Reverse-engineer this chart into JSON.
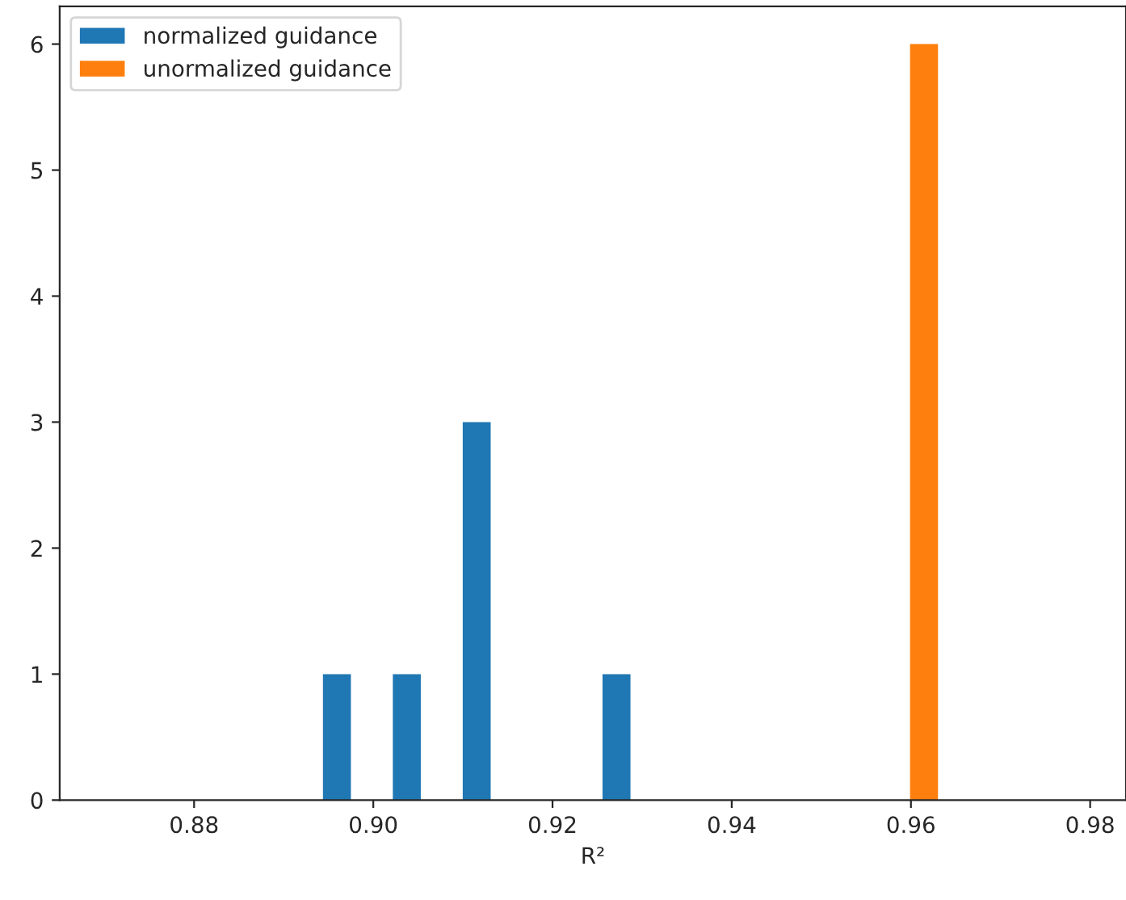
{
  "chart_data": {
    "type": "histogram",
    "xlabel": "R²",
    "bins": [
      0.8936,
      0.9014,
      0.9092,
      0.917,
      0.9248,
      0.9326,
      0.9404,
      0.9482,
      0.956,
      0.9638,
      0.9716
    ],
    "series": [
      {
        "name": "normalized guidance",
        "color": "#1f77b4",
        "values": [
          1,
          1,
          3,
          0,
          1,
          0,
          0,
          0,
          0,
          0
        ]
      },
      {
        "name": "unormalized guidance",
        "color": "#ff7f0e",
        "values": [
          0,
          0,
          0,
          0,
          0,
          0,
          0,
          0,
          6,
          0
        ]
      }
    ],
    "xlim": [
      0.865,
      0.984
    ],
    "xticks": [
      {
        "value": 0.88,
        "label": "0.88"
      },
      {
        "value": 0.9,
        "label": "0.90"
      },
      {
        "value": 0.92,
        "label": "0.92"
      },
      {
        "value": 0.94,
        "label": "0.94"
      },
      {
        "value": 0.96,
        "label": "0.96"
      },
      {
        "value": 0.98,
        "label": "0.98"
      }
    ],
    "ylim": [
      0,
      6.3
    ],
    "yticks": [
      0,
      1,
      2,
      3,
      4,
      5,
      6
    ],
    "legend": "top left",
    "grid": false
  }
}
